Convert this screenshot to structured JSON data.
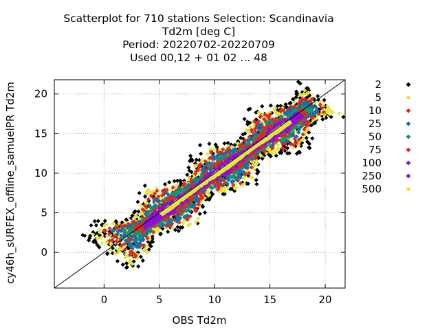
{
  "chart_data": {
    "type": "scatter",
    "title": [
      "Scatterplot for  710 stations Selection: Scandinavia",
      "Td2m [deg C]",
      "Period: 20220702-20220709",
      "Used  00,12  + 01 02 ... 48"
    ],
    "xlabel": "OBS Td2m",
    "ylabel": "cy46h_sURFEX_offline_samuelPR Td2m",
    "xlim": [
      -4.5,
      21.8
    ],
    "ylim": [
      -4.5,
      21.8
    ],
    "xticks": [
      0,
      5,
      10,
      15,
      20
    ],
    "yticks": [
      0,
      5,
      10,
      15,
      20
    ],
    "grid": true,
    "diagonal": "y = x",
    "legend_position": "right",
    "density_classes": [
      {
        "label": "2",
        "color": "#000000"
      },
      {
        "label": "5",
        "color": "#e6e63a"
      },
      {
        "label": "10",
        "color": "#e0281c"
      },
      {
        "label": "25",
        "color": "#0a74b4"
      },
      {
        "label": "50",
        "color": "#0a9a72"
      },
      {
        "label": "75",
        "color": "#e0281c"
      },
      {
        "label": "100",
        "color": "#8a10d8"
      },
      {
        "label": "250",
        "color": "#8a10d8"
      },
      {
        "label": "500",
        "color": "#e6e63a"
      }
    ],
    "cloud_axis": [
      0.2,
      19.8
    ],
    "cloud_bias_offset": -0.3
  }
}
